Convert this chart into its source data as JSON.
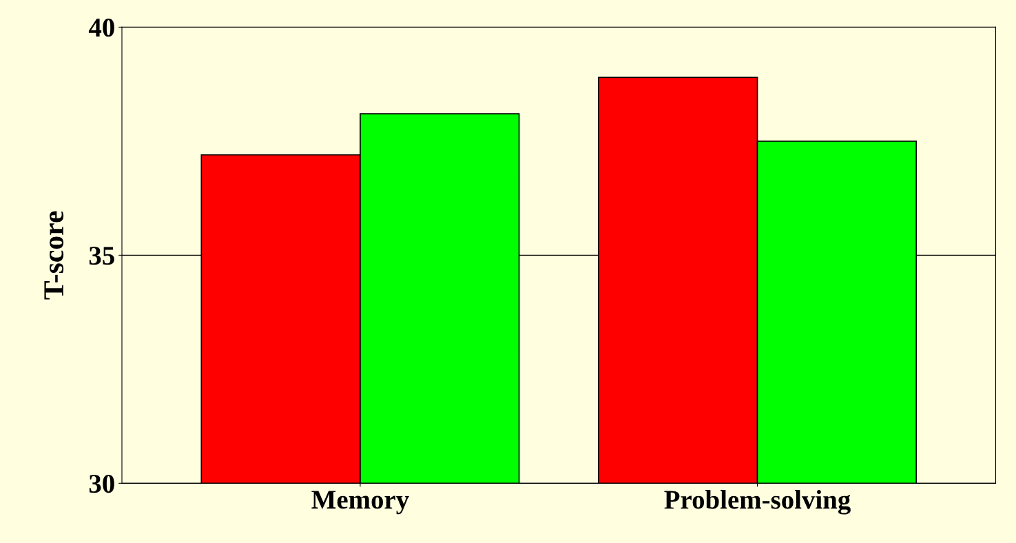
{
  "chart_data": {
    "type": "bar",
    "ylabel": "T-score",
    "categories": [
      "Memory",
      "Problem-solving"
    ],
    "series": [
      {
        "color": "#ff0000",
        "values": [
          37.2,
          38.9
        ]
      },
      {
        "color": "#00ff00",
        "values": [
          38.1,
          37.5
        ]
      }
    ],
    "ylim": [
      30,
      40
    ],
    "yticks": [
      30,
      35,
      40
    ],
    "grid": "y"
  }
}
